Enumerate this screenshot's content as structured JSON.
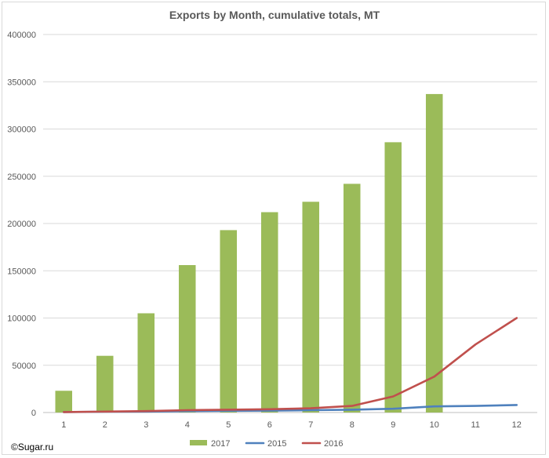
{
  "chart_data": {
    "type": "bar",
    "title": "Exports by Month, cumulative totals, MT",
    "xlabel": "",
    "ylabel": "",
    "categories": [
      "1",
      "2",
      "3",
      "4",
      "5",
      "6",
      "7",
      "8",
      "9",
      "10",
      "11",
      "12"
    ],
    "ylim": [
      0,
      400000
    ],
    "yticks": [
      0,
      50000,
      100000,
      150000,
      200000,
      250000,
      300000,
      350000,
      400000
    ],
    "yticklabels": [
      "0",
      "50000",
      "100000",
      "150000",
      "200000",
      "250000",
      "300000",
      "350000",
      "400000"
    ],
    "grid": true,
    "legend_position": "bottom",
    "series": [
      {
        "name": "2017",
        "kind": "bar",
        "color": "#9BBB59",
        "values": [
          23000,
          60000,
          105000,
          156000,
          193000,
          212000,
          223000,
          242000,
          286000,
          337000,
          null,
          null
        ]
      },
      {
        "name": "2015",
        "kind": "line",
        "color": "#4F81BD",
        "values": [
          500,
          800,
          1000,
          1500,
          1800,
          2000,
          2500,
          3000,
          4000,
          6500,
          7000,
          8000
        ]
      },
      {
        "name": "2016",
        "kind": "line",
        "color": "#C0504D",
        "values": [
          500,
          1000,
          1500,
          2500,
          3000,
          3500,
          4500,
          7000,
          17000,
          38000,
          72000,
          100000
        ]
      }
    ]
  },
  "watermark": "©Sugar.ru"
}
